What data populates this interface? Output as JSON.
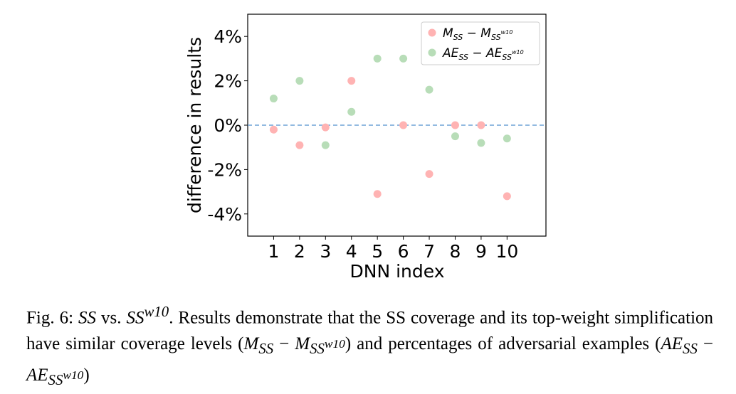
{
  "chart_data": {
    "type": "scatter",
    "xlabel": "DNN index",
    "ylabel": "difference in results",
    "x": [
      1,
      2,
      3,
      4,
      5,
      6,
      7,
      8,
      9,
      10
    ],
    "xticks": [
      "1",
      "2",
      "3",
      "4",
      "5",
      "6",
      "7",
      "8",
      "9",
      "10"
    ],
    "yticks": [
      "-4%",
      "-2%",
      "0%",
      "2%",
      "4%"
    ],
    "xlim": [
      0,
      11.5
    ],
    "ylim": [
      -5,
      5
    ],
    "reference_line": 0,
    "legend_position": "upper right",
    "series": [
      {
        "name_main": "M",
        "name_sub": "SS",
        "name_minus": " − M",
        "name_sub2": "SS",
        "name_sup": "w10",
        "color": "#ffb3b3",
        "values": [
          -0.2,
          -0.9,
          -0.1,
          2.0,
          -3.1,
          0.0,
          -2.2,
          0.0,
          0.0,
          -3.2
        ]
      },
      {
        "name_main": "AE",
        "name_sub": "SS",
        "name_minus": " − AE",
        "name_sub2": "SS",
        "name_sup": "w10",
        "color": "#b8ddb8",
        "values": [
          1.2,
          2.0,
          -0.9,
          0.6,
          3.0,
          3.0,
          1.6,
          -0.5,
          -0.8,
          -0.6
        ]
      }
    ]
  },
  "caption": {
    "fig": "Fig. 6: ",
    "ss1": "SS",
    "vs": " vs. ",
    "ss2": "SS",
    "sup": "w10",
    "text1": ". Results demonstrate that the SS coverage and its top-weight simplification have similar coverage levels (",
    "m1": "M",
    "m1sub": "SS",
    "minus1": " − ",
    "m2": "M",
    "m2sub": "SS",
    "m2sup": "w10",
    "text2": ") and percentages of adversarial examples (",
    "ae1": "AE",
    "ae1sub": "SS",
    "minus2": " − ",
    "ae2": "AE",
    "ae2sub": "SS",
    "ae2sup": "w10",
    "text3": ")"
  }
}
